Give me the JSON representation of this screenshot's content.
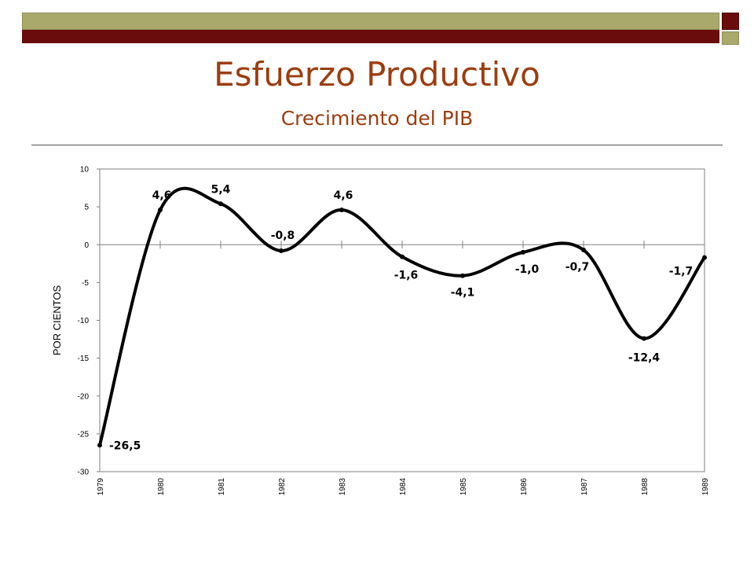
{
  "header": {
    "title": "Esfuerzo Productivo",
    "subtitle": "Crecimiento del PIB"
  },
  "colors": {
    "band_olive": "#a9a96b",
    "band_maroon": "#6b0c0c",
    "title": "#9c3d0f",
    "line": "#000000"
  },
  "chart_data": {
    "type": "line",
    "smooth": true,
    "ylabel": "POR CIENTOS",
    "xlabel": "",
    "ylim": [
      -30,
      10
    ],
    "y_ticks": [
      "10",
      "5",
      "0",
      "-5",
      "-10",
      "-15",
      "-20",
      "-25",
      "-30"
    ],
    "categories": [
      "1979",
      "1980",
      "1981",
      "1982",
      "1983",
      "1984",
      "1985",
      "1986",
      "1987",
      "1988",
      "1989"
    ],
    "series": [
      {
        "values": [
          -26.5,
          4.6,
          5.4,
          -0.8,
          4.6,
          -1.6,
          -4.1,
          -1.0,
          -0.7,
          -12.4,
          -1.7
        ],
        "labels": [
          "-26,5",
          "4,6",
          "5,4",
          "-0,8",
          "4,6",
          "-1,6",
          "-4,1",
          "-1,0",
          "-0,7",
          "-12,4",
          "-1,7"
        ]
      }
    ],
    "grid": false,
    "legend": "none"
  }
}
